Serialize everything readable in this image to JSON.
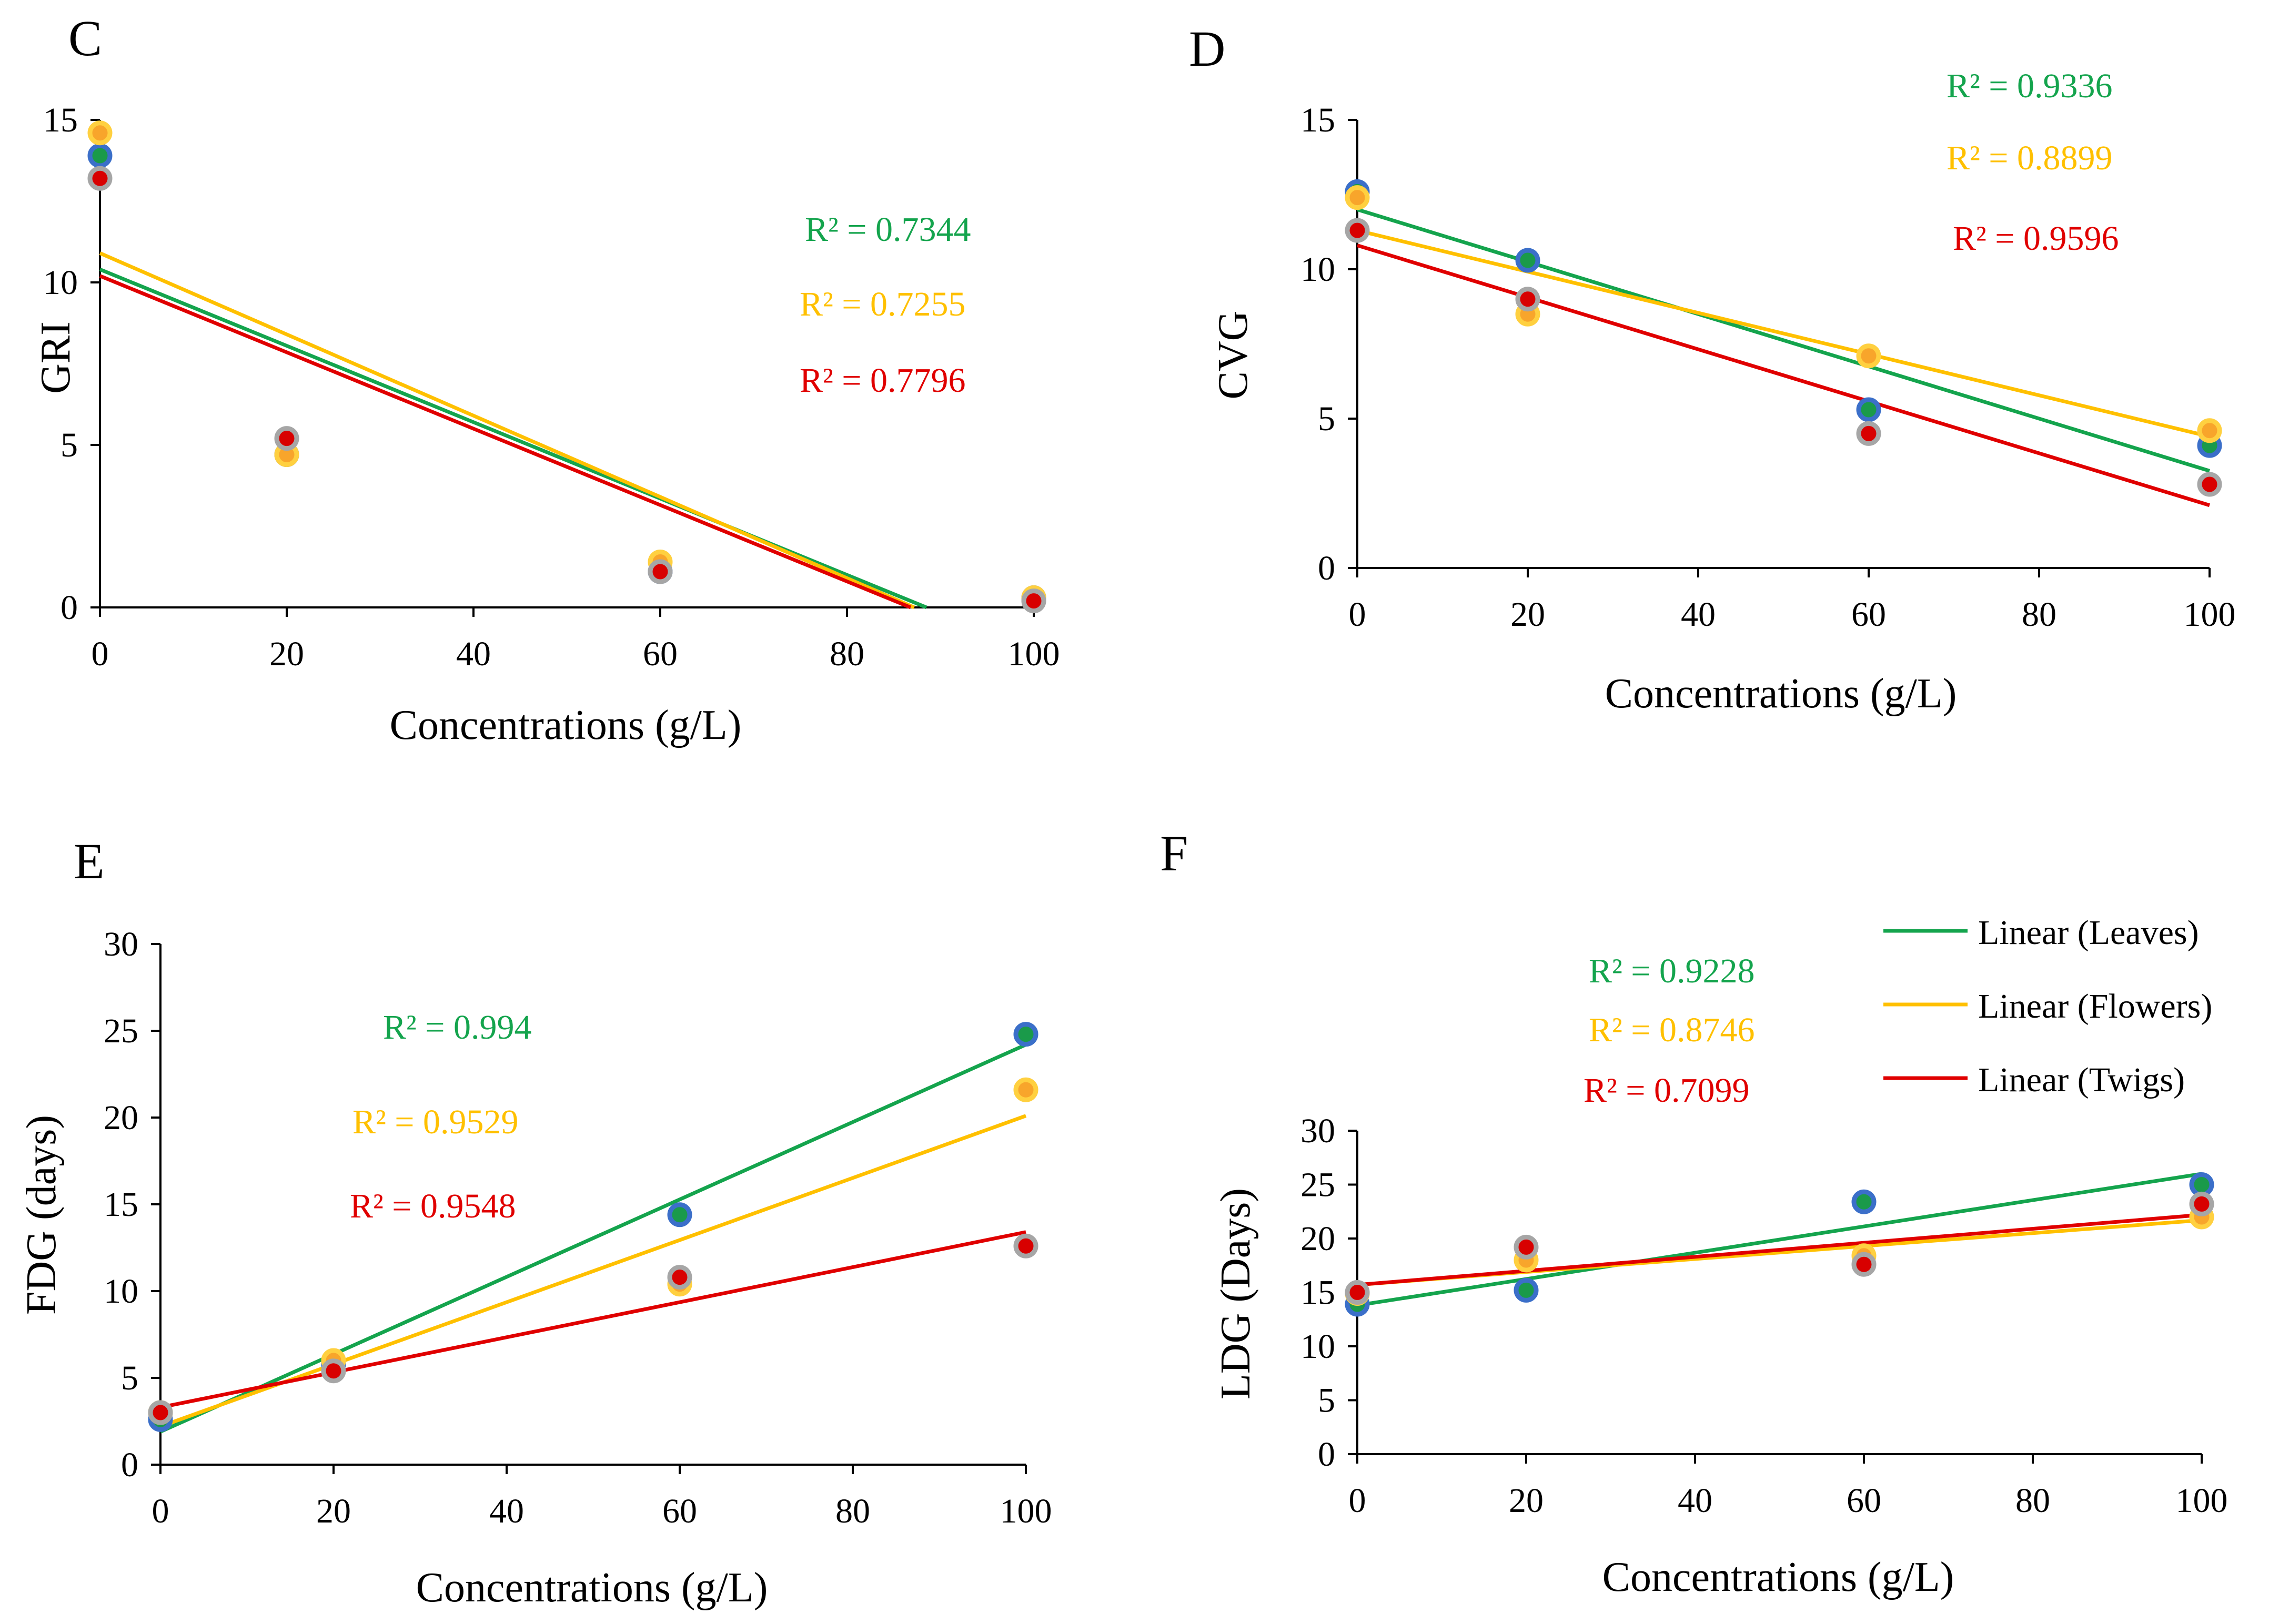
{
  "colors": {
    "leaves": "#14a44d",
    "flowers": "#ffc000",
    "twigs": "#e00000",
    "leaves_marker_fill": "#1a9a4a",
    "leaves_marker_edge": "#3b6fc9",
    "flowers_marker_fill": "#f8a52b",
    "flowers_marker_edge": "#ffd040",
    "twigs_marker_fill": "#d80000",
    "twigs_marker_edge": "#a6a6a6",
    "axis": "#000000"
  },
  "legend": {
    "items": [
      {
        "label": "Linear (Leaves)",
        "series": "leaves"
      },
      {
        "label": "Linear (Flowers)",
        "series": "flowers"
      },
      {
        "label": "Linear (Twigs)",
        "series": "twigs"
      }
    ]
  },
  "chart_data": [
    {
      "panel": "C",
      "type": "scatter",
      "xlabel": "Concentrations (g/L)",
      "ylabel": "GRI",
      "xlim": [
        0,
        100
      ],
      "ylim": [
        0,
        15
      ],
      "xticks": [
        "0",
        "20",
        "40",
        "60",
        "80",
        "100"
      ],
      "yticks": [
        "0",
        "5",
        "10",
        "15"
      ],
      "x": [
        0,
        20,
        60,
        100
      ],
      "clip_at_zero": true,
      "series": [
        {
          "key": "leaves",
          "name": "Leaves",
          "values": [
            13.9,
            4.7,
            1.1,
            0.3
          ],
          "trend": [
            10.4,
            8.05,
            3.35,
            -1.35
          ],
          "r2_label": "R² = 0.7344"
        },
        {
          "key": "flowers",
          "name": "Flowers",
          "values": [
            14.6,
            4.7,
            1.4,
            0.3
          ],
          "trend": [
            10.9,
            8.4,
            3.4,
            -1.6
          ],
          "r2_label": "R² = 0.7255"
        },
        {
          "key": "twigs",
          "name": "Twigs",
          "values": [
            13.2,
            5.2,
            1.1,
            0.2
          ],
          "trend": [
            10.2,
            7.85,
            3.15,
            -1.55
          ],
          "r2_label": "R² = 0.7796"
        }
      ]
    },
    {
      "panel": "D",
      "type": "scatter",
      "xlabel": "Concentrations (g/L)",
      "ylabel": "CVG",
      "xlim": [
        0,
        100
      ],
      "ylim": [
        0,
        15
      ],
      "xticks": [
        "0",
        "20",
        "40",
        "60",
        "80",
        "100"
      ],
      "yticks": [
        "0",
        "5",
        "10",
        "15"
      ],
      "x": [
        0,
        20,
        60,
        100
      ],
      "series": [
        {
          "key": "leaves",
          "name": "Leaves",
          "values": [
            12.6,
            10.3,
            5.3,
            4.1
          ],
          "trend": [
            12.0,
            10.25,
            6.75,
            3.25
          ],
          "r2_label": "R² = 0.9336"
        },
        {
          "key": "flowers",
          "name": "Flowers",
          "values": [
            12.4,
            8.5,
            7.1,
            4.6
          ],
          "trend": [
            11.3,
            9.97,
            7.31,
            4.4
          ],
          "r2_label": "R² = 0.8899"
        },
        {
          "key": "twigs",
          "name": "Twigs",
          "values": [
            11.3,
            9.0,
            4.5,
            2.8
          ],
          "trend": [
            10.8,
            9.06,
            5.58,
            2.1
          ],
          "r2_label": "R² = 0.9596"
        }
      ]
    },
    {
      "panel": "E",
      "type": "scatter",
      "xlabel": "Concentrations (g/L)",
      "ylabel": "FDG (days)",
      "xlim": [
        0,
        100
      ],
      "ylim": [
        0,
        30
      ],
      "xticks": [
        "0",
        "20",
        "40",
        "60",
        "80",
        "100"
      ],
      "yticks": [
        "0",
        "5",
        "10",
        "15",
        "20",
        "25",
        "30"
      ],
      "x": [
        0,
        20,
        60,
        100
      ],
      "series": [
        {
          "key": "leaves",
          "name": "Leaves",
          "values": [
            2.6,
            5.8,
            14.4,
            24.8
          ],
          "trend": [
            1.9,
            6.36,
            15.28,
            24.2
          ],
          "r2_label": "R² = 0.994"
        },
        {
          "key": "flowers",
          "name": "Flowers",
          "values": [
            3.0,
            6.0,
            10.4,
            21.6
          ],
          "trend": [
            2.2,
            5.8,
            13.0,
            20.1
          ],
          "r2_label": "R² = 0.9529"
        },
        {
          "key": "twigs",
          "name": "Twigs",
          "values": [
            3.0,
            5.4,
            10.8,
            12.6
          ],
          "trend": [
            3.3,
            5.32,
            9.36,
            13.4
          ],
          "r2_label": "R² = 0.9548"
        }
      ]
    },
    {
      "panel": "F",
      "type": "scatter",
      "xlabel": "Concentrations (g/L)",
      "ylabel": "LDG (Days)",
      "xlim": [
        0,
        100
      ],
      "ylim": [
        0,
        30
      ],
      "xticks": [
        "0",
        "20",
        "40",
        "60",
        "80",
        "100"
      ],
      "yticks": [
        "0",
        "5",
        "10",
        "15",
        "20",
        "25",
        "30"
      ],
      "x": [
        0,
        20,
        60,
        100
      ],
      "show_legend": true,
      "series": [
        {
          "key": "leaves",
          "name": "Leaves",
          "values": [
            13.9,
            15.2,
            23.4,
            25.0
          ],
          "trend": [
            13.8,
            16.24,
            21.12,
            26.0
          ],
          "r2_label": "R² = 0.9228"
        },
        {
          "key": "flowers",
          "name": "Flowers",
          "values": [
            14.9,
            18.0,
            18.4,
            22.0
          ],
          "trend": [
            15.7,
            16.9,
            19.3,
            21.7
          ],
          "r2_label": "R² = 0.8746"
        },
        {
          "key": "twigs",
          "name": "Twigs",
          "values": [
            15.0,
            19.2,
            17.6,
            23.2
          ],
          "trend": [
            15.7,
            17.0,
            19.6,
            22.2
          ],
          "r2_label": "R² = 0.7099"
        }
      ]
    }
  ]
}
